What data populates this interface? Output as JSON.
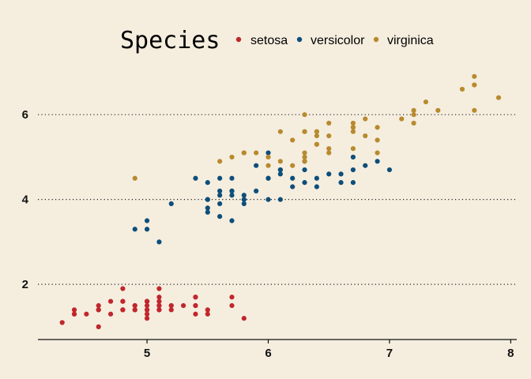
{
  "chart_data": {
    "type": "scatter",
    "title": "",
    "xlabel": "",
    "ylabel": "",
    "xlim": [
      4.1,
      8.05
    ],
    "ylim": [
      0.7,
      7.25
    ],
    "x_ticks": [
      5,
      6,
      7,
      8
    ],
    "y_ticks": [
      2,
      4,
      6
    ],
    "x_tick_labels": [
      "5",
      "6",
      "7",
      "8"
    ],
    "y_tick_labels": [
      "2",
      "4",
      "6"
    ],
    "grid": "horizontal dotted",
    "legend": {
      "title": "Species",
      "position": "top",
      "entries": [
        "setosa",
        "versicolor",
        "virginica"
      ]
    },
    "series": [
      {
        "name": "setosa",
        "color": "#c0272d",
        "points": [
          [
            5.1,
            1.4
          ],
          [
            4.9,
            1.4
          ],
          [
            4.7,
            1.3
          ],
          [
            4.6,
            1.5
          ],
          [
            5.0,
            1.4
          ],
          [
            5.4,
            1.7
          ],
          [
            4.6,
            1.4
          ],
          [
            5.0,
            1.5
          ],
          [
            4.4,
            1.4
          ],
          [
            4.9,
            1.5
          ],
          [
            5.4,
            1.5
          ],
          [
            4.8,
            1.6
          ],
          [
            4.8,
            1.4
          ],
          [
            4.3,
            1.1
          ],
          [
            5.8,
            1.2
          ],
          [
            5.7,
            1.5
          ],
          [
            5.4,
            1.3
          ],
          [
            5.1,
            1.4
          ],
          [
            5.7,
            1.7
          ],
          [
            5.1,
            1.5
          ],
          [
            5.4,
            1.7
          ],
          [
            5.1,
            1.5
          ],
          [
            4.6,
            1.0
          ],
          [
            5.1,
            1.7
          ],
          [
            4.8,
            1.9
          ],
          [
            5.0,
            1.6
          ],
          [
            5.0,
            1.6
          ],
          [
            5.2,
            1.5
          ],
          [
            5.2,
            1.4
          ],
          [
            4.7,
            1.6
          ],
          [
            4.8,
            1.6
          ],
          [
            5.4,
            1.5
          ],
          [
            5.2,
            1.5
          ],
          [
            5.5,
            1.4
          ],
          [
            4.9,
            1.5
          ],
          [
            5.0,
            1.2
          ],
          [
            5.5,
            1.3
          ],
          [
            4.9,
            1.4
          ],
          [
            4.4,
            1.3
          ],
          [
            5.1,
            1.5
          ],
          [
            5.0,
            1.3
          ],
          [
            4.5,
            1.3
          ],
          [
            4.4,
            1.3
          ],
          [
            5.0,
            1.6
          ],
          [
            5.1,
            1.9
          ],
          [
            4.8,
            1.4
          ],
          [
            5.1,
            1.6
          ],
          [
            4.6,
            1.4
          ],
          [
            5.3,
            1.5
          ],
          [
            5.0,
            1.4
          ]
        ]
      },
      {
        "name": "versicolor",
        "color": "#0e4e7a",
        "points": [
          [
            7.0,
            4.7
          ],
          [
            6.4,
            4.5
          ],
          [
            6.9,
            4.9
          ],
          [
            5.5,
            4.0
          ],
          [
            6.5,
            4.6
          ],
          [
            5.7,
            4.5
          ],
          [
            6.3,
            4.7
          ],
          [
            4.9,
            3.3
          ],
          [
            6.6,
            4.6
          ],
          [
            5.2,
            3.9
          ],
          [
            5.0,
            3.5
          ],
          [
            5.9,
            4.2
          ],
          [
            6.0,
            4.0
          ],
          [
            6.1,
            4.7
          ],
          [
            5.6,
            3.6
          ],
          [
            6.7,
            4.4
          ],
          [
            5.6,
            4.5
          ],
          [
            5.8,
            4.1
          ],
          [
            6.2,
            4.5
          ],
          [
            5.6,
            3.9
          ],
          [
            5.9,
            4.8
          ],
          [
            6.1,
            4.0
          ],
          [
            6.3,
            4.9
          ],
          [
            6.1,
            4.7
          ],
          [
            6.4,
            4.3
          ],
          [
            6.6,
            4.4
          ],
          [
            6.8,
            4.8
          ],
          [
            6.7,
            5.0
          ],
          [
            6.0,
            4.5
          ],
          [
            5.7,
            3.5
          ],
          [
            5.5,
            3.8
          ],
          [
            5.5,
            3.7
          ],
          [
            5.8,
            3.9
          ],
          [
            6.0,
            5.1
          ],
          [
            5.4,
            4.5
          ],
          [
            6.0,
            4.5
          ],
          [
            6.7,
            4.7
          ],
          [
            6.3,
            4.4
          ],
          [
            5.6,
            4.1
          ],
          [
            5.5,
            4.0
          ],
          [
            5.5,
            4.4
          ],
          [
            6.1,
            4.6
          ],
          [
            5.8,
            4.0
          ],
          [
            5.0,
            3.3
          ],
          [
            5.6,
            4.2
          ],
          [
            5.7,
            4.2
          ],
          [
            5.7,
            4.2
          ],
          [
            6.2,
            4.3
          ],
          [
            5.1,
            3.0
          ],
          [
            5.7,
            4.1
          ]
        ]
      },
      {
        "name": "virginica",
        "color": "#b88a2e",
        "points": [
          [
            6.3,
            6.0
          ],
          [
            5.8,
            5.1
          ],
          [
            7.1,
            5.9
          ],
          [
            6.3,
            5.6
          ],
          [
            6.5,
            5.8
          ],
          [
            7.6,
            6.6
          ],
          [
            4.9,
            4.5
          ],
          [
            7.3,
            6.3
          ],
          [
            6.7,
            5.8
          ],
          [
            7.2,
            6.1
          ],
          [
            6.5,
            5.1
          ],
          [
            6.4,
            5.3
          ],
          [
            6.8,
            5.5
          ],
          [
            5.7,
            5.0
          ],
          [
            5.8,
            5.1
          ],
          [
            6.4,
            5.3
          ],
          [
            6.5,
            5.5
          ],
          [
            7.7,
            6.7
          ],
          [
            7.7,
            6.9
          ],
          [
            6.0,
            5.0
          ],
          [
            6.9,
            5.7
          ],
          [
            5.6,
            4.9
          ],
          [
            7.7,
            6.7
          ],
          [
            6.3,
            4.9
          ],
          [
            6.7,
            5.7
          ],
          [
            7.2,
            6.0
          ],
          [
            6.2,
            4.8
          ],
          [
            6.1,
            4.9
          ],
          [
            6.4,
            5.6
          ],
          [
            7.2,
            5.8
          ],
          [
            7.4,
            6.1
          ],
          [
            7.9,
            6.4
          ],
          [
            6.4,
            5.6
          ],
          [
            6.3,
            5.1
          ],
          [
            6.1,
            5.6
          ],
          [
            7.7,
            6.1
          ],
          [
            6.3,
            5.6
          ],
          [
            6.4,
            5.5
          ],
          [
            6.0,
            4.8
          ],
          [
            6.9,
            5.4
          ],
          [
            6.7,
            5.6
          ],
          [
            6.9,
            5.1
          ],
          [
            5.8,
            5.1
          ],
          [
            6.8,
            5.9
          ],
          [
            6.7,
            5.7
          ],
          [
            6.7,
            5.2
          ],
          [
            6.3,
            5.0
          ],
          [
            6.5,
            5.2
          ],
          [
            6.2,
            5.4
          ],
          [
            5.9,
            5.1
          ]
        ]
      }
    ]
  }
}
